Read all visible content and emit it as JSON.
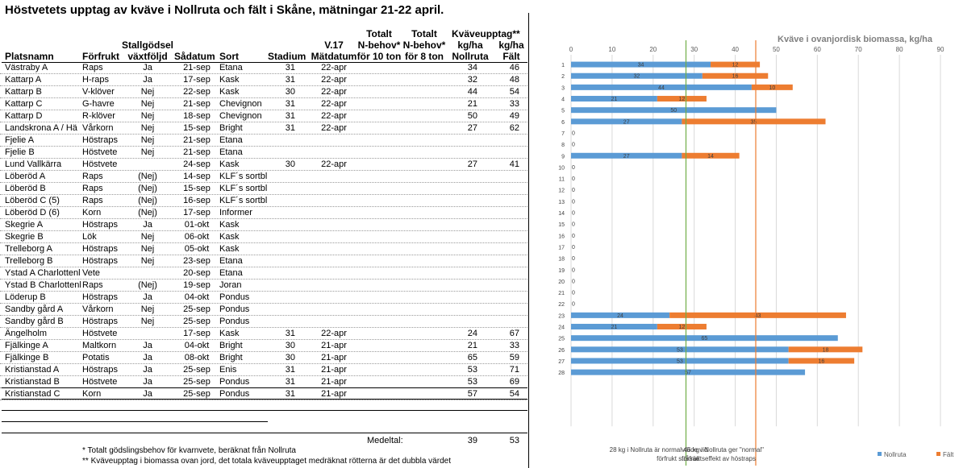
{
  "title": "Höstvetets upptag av kväve i Nollruta och fält i Skåne, mätningar 21-22 april.",
  "headers": {
    "platsnamn": "Platsnamn",
    "forfrukt": "Förfrukt",
    "stallgodsel_1": "Stallgödsel",
    "stallgodsel_2": "växtföljd",
    "sadatum": "Sådatum",
    "sort": "Sort",
    "stadium": "Stadium",
    "v17_1": "V.17",
    "v17_2": "Mätdatum",
    "n10_1": "Totalt",
    "n10_2": "N-behov*",
    "n10_3": "för 10 ton",
    "n8_1": "Totalt",
    "n8_2": "N-behov*",
    "n8_3": "för 8 ton",
    "kvave_1": "Kväveupptag**",
    "kvave_2": "kg/ha",
    "kvave_3": "Nollruta",
    "falt_1": "kg/ha",
    "falt_2": "Fält"
  },
  "rows": [
    {
      "place": "Västraby A",
      "crop": "Raps",
      "manure": "Ja",
      "sow": "21-sep",
      "variety": "Etana",
      "stage": "31",
      "mdate": "22-apr",
      "n10": "",
      "n8": "",
      "noll": "34",
      "falt": "46"
    },
    {
      "place": "Kattarp A",
      "crop": "H-raps",
      "manure": "Ja",
      "sow": "17-sep",
      "variety": "Kask",
      "stage": "31",
      "mdate": "22-apr",
      "n10": "",
      "n8": "",
      "noll": "32",
      "falt": "48"
    },
    {
      "place": "Kattarp B",
      "crop": "V-klöver",
      "manure": "Nej",
      "sow": "22-sep",
      "variety": "Kask",
      "stage": "30",
      "mdate": "22-apr",
      "n10": "",
      "n8": "",
      "noll": "44",
      "falt": "54"
    },
    {
      "place": "Kattarp C",
      "crop": "G-havre",
      "manure": "Nej",
      "sow": "21-sep",
      "variety": "Chevignon",
      "stage": "31",
      "mdate": "22-apr",
      "n10": "",
      "n8": "",
      "noll": "21",
      "falt": "33"
    },
    {
      "place": "Kattarp D",
      "crop": "R-klöver",
      "manure": "Nej",
      "sow": "18-sep",
      "variety": "Chevignon",
      "stage": "31",
      "mdate": "22-apr",
      "n10": "",
      "n8": "",
      "noll": "50",
      "falt": "49"
    },
    {
      "place": "Landskrona A / Hä",
      "crop": "Vårkorn",
      "manure": "Nej",
      "sow": "15-sep",
      "variety": "Bright",
      "stage": "31",
      "mdate": "22-apr",
      "n10": "",
      "n8": "",
      "noll": "27",
      "falt": "62"
    },
    {
      "place": "Fjelie A",
      "crop": "Höstraps",
      "manure": "Nej",
      "sow": "21-sep",
      "variety": "Etana",
      "stage": "",
      "mdate": "",
      "n10": "",
      "n8": "",
      "noll": "",
      "falt": ""
    },
    {
      "place": "Fjelie B",
      "crop": "Höstvete",
      "manure": "Nej",
      "sow": "21-sep",
      "variety": "Etana",
      "stage": "",
      "mdate": "",
      "n10": "",
      "n8": "",
      "noll": "",
      "falt": ""
    },
    {
      "place": "Lund Vallkärra",
      "crop": "Höstvete",
      "manure": "",
      "sow": "24-sep",
      "variety": "Kask",
      "stage": "30",
      "mdate": "22-apr",
      "n10": "",
      "n8": "",
      "noll": "27",
      "falt": "41"
    },
    {
      "place": "Löberöd A",
      "crop": "Raps",
      "manure": "(Nej)",
      "sow": "14-sep",
      "variety": "KLF´s sortbl",
      "stage": "",
      "mdate": "",
      "n10": "",
      "n8": "",
      "noll": "",
      "falt": ""
    },
    {
      "place": "Löberöd B",
      "crop": "Raps",
      "manure": "(Nej)",
      "sow": "15-sep",
      "variety": "KLF´s sortbl",
      "stage": "",
      "mdate": "",
      "n10": "",
      "n8": "",
      "noll": "",
      "falt": ""
    },
    {
      "place": "Löberöd C (5)",
      "crop": "Raps",
      "manure": "(Nej)",
      "sow": "16-sep",
      "variety": "KLF´s sortbl",
      "stage": "",
      "mdate": "",
      "n10": "",
      "n8": "",
      "noll": "",
      "falt": ""
    },
    {
      "place": "Löberöd D (6)",
      "crop": "Korn",
      "manure": "(Nej)",
      "sow": "17-sep",
      "variety": "Informer",
      "stage": "",
      "mdate": "",
      "n10": "",
      "n8": "",
      "noll": "",
      "falt": ""
    },
    {
      "place": "Skegrie A",
      "crop": "Höstraps",
      "manure": "Ja",
      "sow": "01-okt",
      "variety": "Kask",
      "stage": "",
      "mdate": "",
      "n10": "",
      "n8": "",
      "noll": "",
      "falt": ""
    },
    {
      "place": "Skegrie B",
      "crop": "Lök",
      "manure": "Nej",
      "sow": "06-okt",
      "variety": "Kask",
      "stage": "",
      "mdate": "",
      "n10": "",
      "n8": "",
      "noll": "",
      "falt": ""
    },
    {
      "place": "Trelleborg A",
      "crop": "Höstraps",
      "manure": "Nej",
      "sow": "05-okt",
      "variety": "Kask",
      "stage": "",
      "mdate": "",
      "n10": "",
      "n8": "",
      "noll": "",
      "falt": ""
    },
    {
      "place": "Trelleborg B",
      "crop": "Höstraps",
      "manure": "Nej",
      "sow": "23-sep",
      "variety": "Etana",
      "stage": "",
      "mdate": "",
      "n10": "",
      "n8": "",
      "noll": "",
      "falt": ""
    },
    {
      "place": "Ystad A Charlottenl",
      "crop": "Vete",
      "manure": "",
      "sow": "20-sep",
      "variety": "Etana",
      "stage": "",
      "mdate": "",
      "n10": "",
      "n8": "",
      "noll": "",
      "falt": ""
    },
    {
      "place": "Ystad B Charlottenl",
      "crop": "Raps",
      "manure": "(Nej)",
      "sow": "19-sep",
      "variety": "Joran",
      "stage": "",
      "mdate": "",
      "n10": "",
      "n8": "",
      "noll": "",
      "falt": ""
    },
    {
      "place": "Löderup B",
      "crop": "Höstraps",
      "manure": "Ja",
      "sow": "04-okt",
      "variety": "Pondus",
      "stage": "",
      "mdate": "",
      "n10": "",
      "n8": "",
      "noll": "",
      "falt": ""
    },
    {
      "place": "Sandby gård A",
      "crop": "Vårkorn",
      "manure": "Nej",
      "sow": "25-sep",
      "variety": "Pondus",
      "stage": "",
      "mdate": "",
      "n10": "",
      "n8": "",
      "noll": "",
      "falt": ""
    },
    {
      "place": "Sandby gård B",
      "crop": "Höstraps",
      "manure": "Nej",
      "sow": "25-sep",
      "variety": "Pondus",
      "stage": "",
      "mdate": "",
      "n10": "",
      "n8": "",
      "noll": "",
      "falt": ""
    },
    {
      "place": "Ängelholm",
      "crop": "Höstvete",
      "manure": "",
      "sow": "17-sep",
      "variety": "Kask",
      "stage": "31",
      "mdate": "22-apr",
      "n10": "",
      "n8": "",
      "noll": "24",
      "falt": "67"
    },
    {
      "place": "Fjälkinge A",
      "crop": "Maltkorn",
      "manure": "Ja",
      "sow": "04-okt",
      "variety": "Bright",
      "stage": "30",
      "mdate": "21-apr",
      "n10": "",
      "n8": "",
      "noll": "21",
      "falt": "33"
    },
    {
      "place": "Fjälkinge B",
      "crop": "Potatis",
      "manure": "Ja",
      "sow": "08-okt",
      "variety": "Bright",
      "stage": "30",
      "mdate": "21-apr",
      "n10": "",
      "n8": "",
      "noll": "65",
      "falt": "59"
    },
    {
      "place": "Kristianstad A",
      "crop": "Höstraps",
      "manure": "Ja",
      "sow": "25-sep",
      "variety": "Enis",
      "stage": "31",
      "mdate": "21-apr",
      "n10": "",
      "n8": "",
      "noll": "53",
      "falt": "71"
    },
    {
      "place": "Kristianstad B",
      "crop": "Höstvete",
      "manure": "Ja",
      "sow": "25-sep",
      "variety": "Pondus",
      "stage": "31",
      "mdate": "21-apr",
      "n10": "",
      "n8": "",
      "noll": "53",
      "falt": "69"
    },
    {
      "place": "Kristianstad C",
      "crop": "Korn",
      "manure": "Ja",
      "sow": "25-sep",
      "variety": "Pondus",
      "stage": "31",
      "mdate": "21-apr",
      "n10": "",
      "n8": "",
      "noll": "57",
      "falt": "54"
    }
  ],
  "summary": {
    "label": "Medeltal:",
    "noll": "39",
    "falt": "53"
  },
  "footnotes": {
    "f1_mark": "*",
    "f1": "Totalt gödslingsbehov för kvarnvete, beräknat från Nollruta",
    "f2_mark": "**",
    "f2": "Kväveupptag i biomassa ovan jord, det totala kväveupptaget medräknat rötterna är det dubbla värdet"
  },
  "chart_data": {
    "type": "bar",
    "orientation": "horizontal",
    "stacked": true,
    "title": "Kväve i ovanjordisk biomassa, kg/ha",
    "categories": [
      "1",
      "2",
      "3",
      "4",
      "5",
      "6",
      "7",
      "8",
      "9",
      "10",
      "11",
      "12",
      "13",
      "14",
      "15",
      "16",
      "17",
      "18",
      "19",
      "20",
      "21",
      "22",
      "23",
      "24",
      "25",
      "26",
      "27",
      "28"
    ],
    "series": [
      {
        "name": "Nollruta",
        "color": "#5b9bd5",
        "values": [
          34,
          32,
          44,
          21,
          50,
          27,
          0,
          0,
          27,
          0,
          0,
          0,
          0,
          0,
          0,
          0,
          0,
          0,
          0,
          0,
          0,
          0,
          24,
          21,
          65,
          53,
          53,
          57
        ]
      },
      {
        "name": "Fält",
        "color": "#ed7d31",
        "values": [
          12,
          16,
          10,
          12,
          null,
          35,
          null,
          null,
          14,
          null,
          null,
          null,
          null,
          null,
          null,
          null,
          null,
          null,
          null,
          null,
          null,
          null,
          43,
          12,
          null,
          18,
          16,
          null
        ]
      }
    ],
    "zero_labels": [
      "7",
      "8",
      "10",
      "11",
      "12",
      "13",
      "14",
      "15",
      "16",
      "17",
      "18",
      "19",
      "20",
      "21",
      "22"
    ],
    "xlim": [
      0,
      90
    ],
    "xticks": [
      0,
      10,
      20,
      30,
      40,
      50,
      60,
      70,
      80,
      90
    ],
    "grid": true,
    "reference_lines": [
      {
        "value": 28,
        "color": "#70ad47",
        "label_1": "28 kg i Nollruta är normalvärde vid",
        "label_2": "förfrukt stråsäd"
      },
      {
        "value": 45,
        "color": "#ed7d31",
        "label_1": "45 kg i Nollruta ger \"normal\"",
        "label_2": "förfruktseffekt av höstraps"
      }
    ],
    "legend": "bottom-right"
  }
}
